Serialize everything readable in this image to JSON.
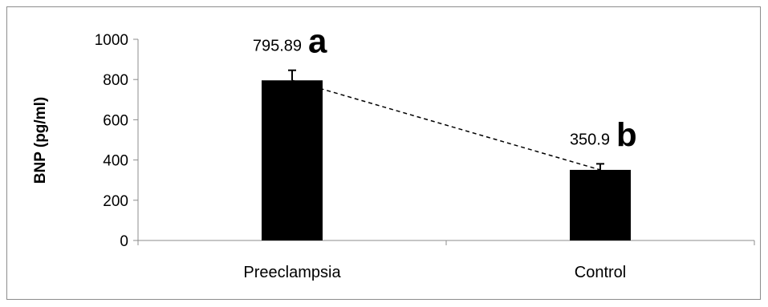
{
  "chart_data": {
    "type": "bar",
    "categories": [
      "Preeclampsia",
      "Control"
    ],
    "values": [
      795.89,
      350.9
    ],
    "error_bars": [
      50,
      30
    ],
    "data_labels": [
      "795.89",
      "350.9"
    ],
    "significance_letters": [
      "a",
      "b"
    ],
    "trend_line": "dashed",
    "ylabel": "BNP (pg/ml)",
    "xlabel": "",
    "ylim": [
      0,
      1000
    ],
    "yticks": [
      0,
      200,
      400,
      600,
      800,
      1000
    ],
    "ytick_labels": [
      "0",
      "200",
      "400",
      "600",
      "800",
      "1000"
    ],
    "grid": false,
    "legend": "none",
    "bar_color": "#000000"
  }
}
